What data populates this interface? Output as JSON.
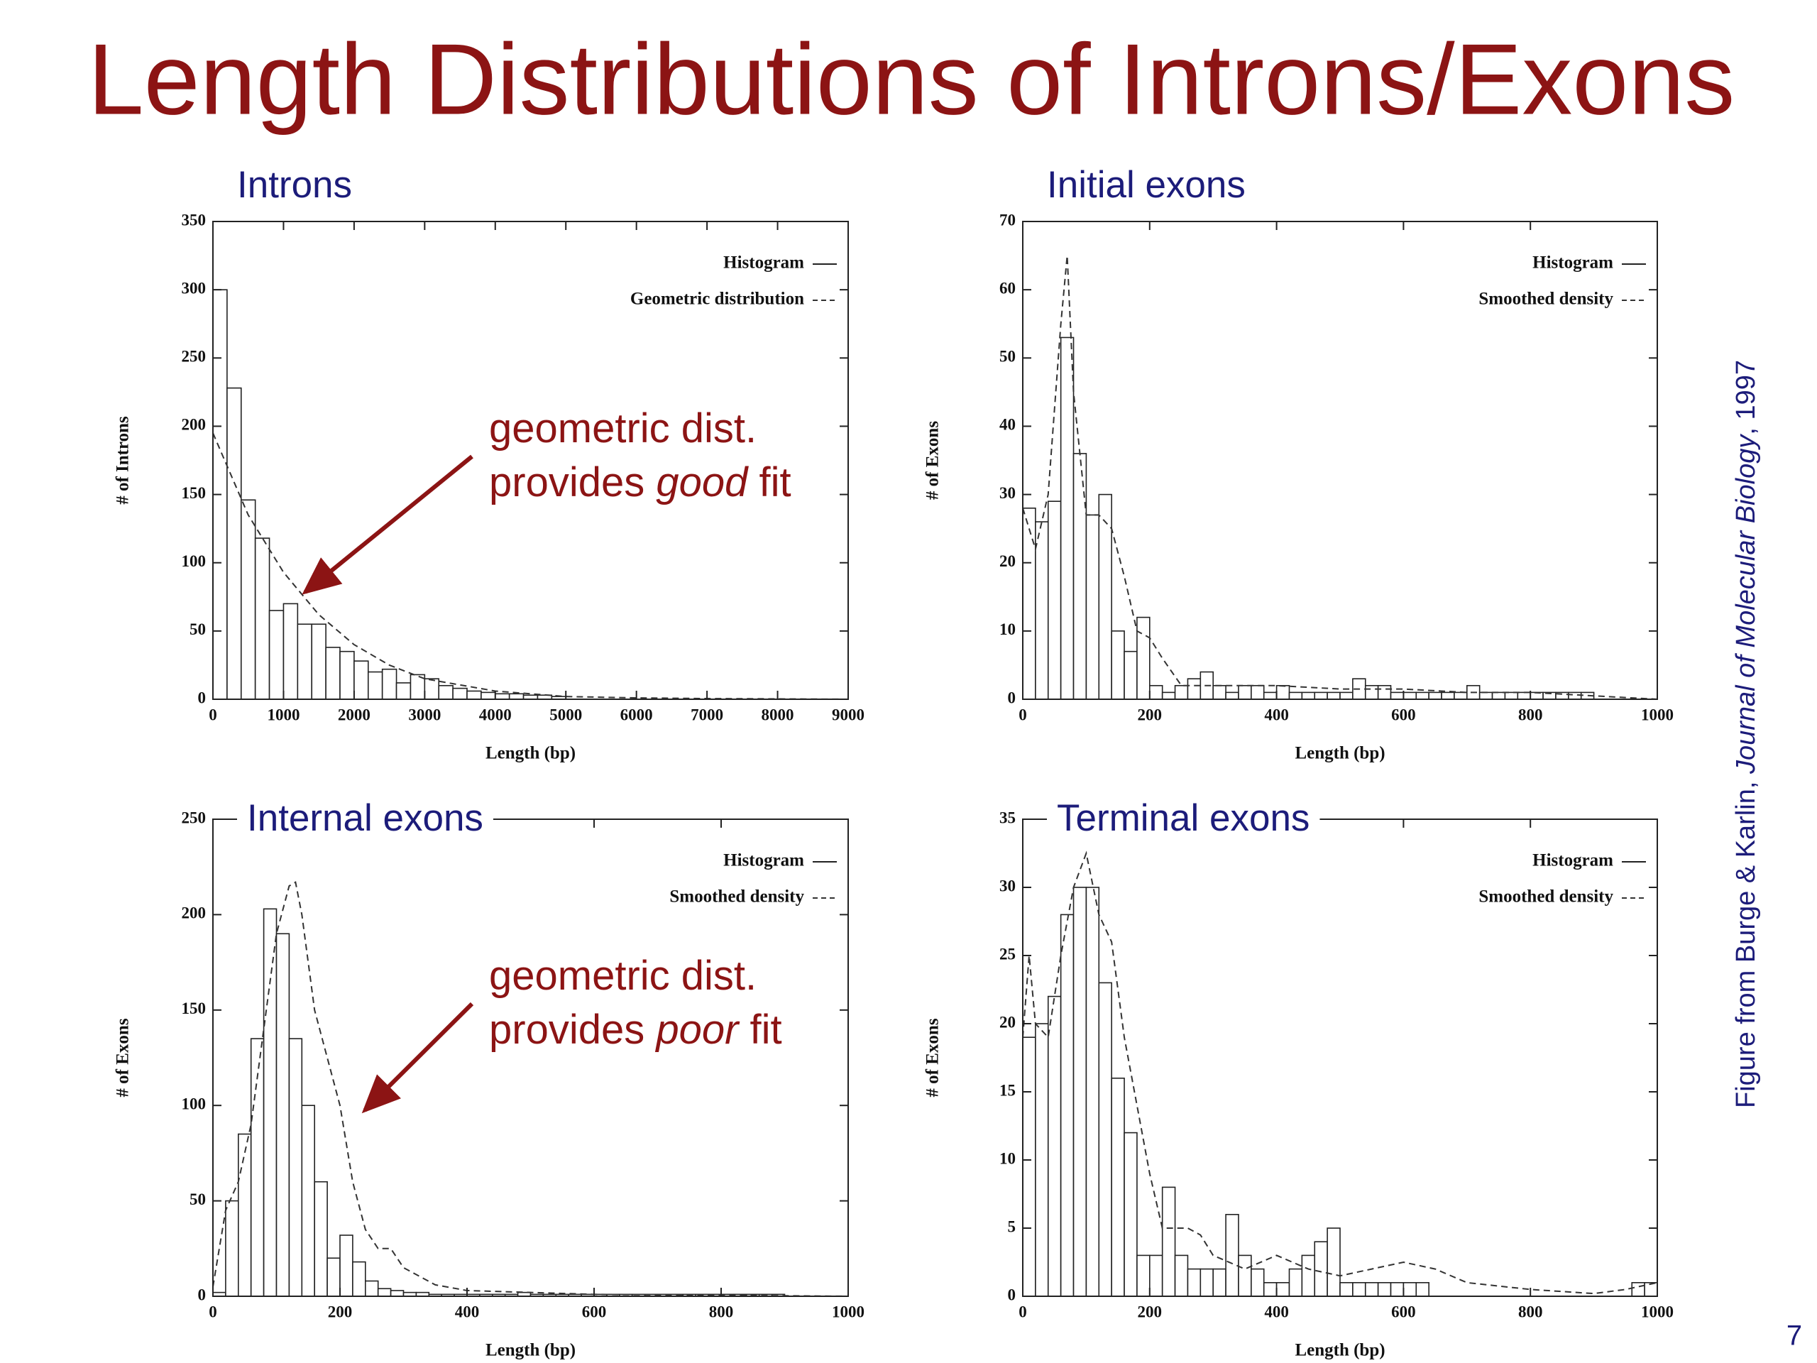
{
  "title": "Length Distributions of Introns/Exons",
  "citation": {
    "before": "Figure from Burge & Karlin, ",
    "italic": "Journal of Molecular Biology",
    "after": ", 1997"
  },
  "page_number": "7",
  "chart_data": [
    {
      "type": "histogram",
      "title": "Introns",
      "xlabel": "Length (bp)",
      "ylabel": "# of Introns",
      "legend": "upper right",
      "bins": [
        0,
        200,
        400,
        600,
        800,
        1000,
        1200,
        1400,
        1600,
        1800,
        2000,
        2200,
        2400,
        2600,
        2800,
        3000,
        3200,
        3400,
        3600,
        3800,
        4000,
        4200,
        4400,
        4600,
        4800,
        5000
      ],
      "series": [
        {
          "name": "Histogram",
          "color": "#222222",
          "style": "solid",
          "values": [
            300,
            228,
            146,
            118,
            65,
            70,
            55,
            55,
            38,
            35,
            28,
            20,
            22,
            12,
            18,
            15,
            10,
            8,
            6,
            5,
            4,
            4,
            3,
            3,
            2
          ]
        },
        {
          "name": "Geometric distribution",
          "color": "#333333",
          "style": "dashed",
          "x": [
            0,
            500,
            1000,
            1500,
            2000,
            2500,
            3000,
            4000,
            5000,
            6000,
            7000,
            9000
          ],
          "values": [
            195,
            135,
            93,
            62,
            40,
            25,
            15,
            6,
            2,
            1,
            0.5,
            0
          ]
        }
      ],
      "xlim": [
        0,
        9000
      ],
      "ylim": [
        0,
        350
      ],
      "xticks": [
        0,
        1000,
        2000,
        3000,
        4000,
        5000,
        6000,
        7000,
        8000,
        9000
      ],
      "yticks": [
        0,
        50,
        100,
        150,
        200,
        250,
        300,
        350
      ],
      "annotation": {
        "line1": "geometric dist.",
        "before": "provides ",
        "emphasis": "good",
        "after": " fit"
      }
    },
    {
      "type": "histogram",
      "title": "Initial exons",
      "xlabel": "Length (bp)",
      "ylabel": "# of Exons",
      "legend": "upper right",
      "bins": [
        0,
        20,
        40,
        60,
        80,
        100,
        120,
        140,
        160,
        180,
        200,
        220,
        240,
        260,
        280,
        300,
        320,
        340,
        360,
        380,
        400,
        420,
        440,
        460,
        480,
        500,
        520,
        540,
        560,
        580,
        600,
        620,
        640,
        660,
        680,
        700,
        720,
        740,
        760,
        780,
        800,
        820,
        840,
        860,
        880,
        900,
        920,
        940,
        960,
        980,
        1000
      ],
      "series": [
        {
          "name": "Histogram",
          "color": "#222222",
          "style": "solid",
          "values": [
            28,
            26,
            29,
            53,
            36,
            27,
            30,
            10,
            7,
            12,
            2,
            1,
            2,
            3,
            4,
            2,
            1,
            2,
            2,
            1,
            2,
            1,
            1,
            1,
            1,
            1,
            3,
            2,
            2,
            1,
            1,
            1,
            1,
            1,
            1,
            2,
            1,
            1,
            1,
            1,
            1,
            1,
            1,
            1,
            1,
            0,
            0,
            0,
            0,
            0
          ]
        },
        {
          "name": "Smoothed density",
          "color": "#333333",
          "style": "dashed",
          "x": [
            0,
            10,
            20,
            40,
            60,
            70,
            80,
            100,
            120,
            140,
            160,
            180,
            200,
            220,
            250,
            300,
            400,
            500,
            600,
            700,
            800,
            900,
            1000
          ],
          "values": [
            28,
            25,
            22,
            30,
            55,
            65,
            45,
            27,
            27,
            25,
            18,
            10,
            9,
            6,
            2,
            2,
            2,
            1.5,
            1.5,
            1,
            1,
            0.5,
            0
          ]
        }
      ],
      "xlim": [
        0,
        1000
      ],
      "ylim": [
        0,
        70
      ],
      "xticks": [
        0,
        200,
        400,
        600,
        800,
        1000
      ],
      "yticks": [
        0,
        10,
        20,
        30,
        40,
        50,
        60,
        70
      ]
    },
    {
      "type": "histogram",
      "title": "Internal exons",
      "xlabel": "Length (bp)",
      "ylabel": "# of Exons",
      "legend": "upper right",
      "bins": [
        0,
        20,
        40,
        60,
        80,
        100,
        120,
        140,
        160,
        180,
        200,
        220,
        240,
        260,
        280,
        300,
        320,
        340,
        360,
        380,
        400,
        420,
        440,
        460,
        480,
        500,
        520,
        540,
        560,
        580,
        600,
        620,
        640,
        660,
        680,
        700,
        720,
        740,
        760,
        780,
        800,
        820,
        840,
        860,
        880,
        900,
        920,
        940,
        960,
        980,
        1000
      ],
      "series": [
        {
          "name": "Histogram",
          "color": "#222222",
          "style": "solid",
          "values": [
            2,
            50,
            85,
            135,
            203,
            190,
            135,
            100,
            60,
            20,
            32,
            18,
            8,
            4,
            3,
            2,
            2,
            1,
            1,
            1,
            1,
            1,
            1,
            1,
            2,
            1,
            1,
            1,
            1,
            1,
            1,
            1,
            1,
            1,
            1,
            1,
            1,
            1,
            1,
            1,
            1,
            1,
            1,
            1,
            1,
            0,
            0,
            0,
            0,
            0
          ]
        },
        {
          "name": "Smoothed density",
          "color": "#333333",
          "style": "dashed",
          "x": [
            0,
            20,
            40,
            60,
            80,
            100,
            120,
            130,
            140,
            160,
            180,
            200,
            220,
            240,
            260,
            280,
            300,
            350,
            400,
            500,
            600,
            800,
            1000
          ],
          "values": [
            5,
            45,
            60,
            90,
            140,
            190,
            215,
            217,
            200,
            150,
            125,
            100,
            60,
            35,
            25,
            25,
            15,
            6,
            3,
            2,
            1,
            0.5,
            0
          ]
        }
      ],
      "xlim": [
        0,
        1000
      ],
      "ylim": [
        0,
        250
      ],
      "xticks": [
        0,
        200,
        400,
        600,
        800,
        1000
      ],
      "yticks": [
        0,
        50,
        100,
        150,
        200,
        250
      ],
      "annotation": {
        "line1": "geometric dist.",
        "before": "provides ",
        "emphasis": "poor",
        "after": " fit"
      }
    },
    {
      "type": "histogram",
      "title": "Terminal exons",
      "xlabel": "Length (bp)",
      "ylabel": "# of Exons",
      "legend": "upper right",
      "bins": [
        0,
        20,
        40,
        60,
        80,
        100,
        120,
        140,
        160,
        180,
        200,
        220,
        240,
        260,
        280,
        300,
        320,
        340,
        360,
        380,
        400,
        420,
        440,
        460,
        480,
        500,
        520,
        540,
        560,
        580,
        600,
        620,
        640,
        660,
        680,
        700,
        720,
        740,
        760,
        780,
        800,
        820,
        840,
        860,
        880,
        900,
        920,
        940,
        960,
        980,
        1000
      ],
      "series": [
        {
          "name": "Histogram",
          "color": "#222222",
          "style": "solid",
          "values": [
            19,
            20,
            22,
            28,
            30,
            30,
            23,
            16,
            12,
            3,
            3,
            8,
            3,
            2,
            2,
            2,
            6,
            3,
            2,
            1,
            1,
            2,
            3,
            4,
            5,
            1,
            1,
            1,
            1,
            1,
            1,
            1,
            0,
            0,
            0,
            0,
            0,
            0,
            0,
            0,
            0,
            0,
            0,
            0,
            0,
            0,
            0,
            0,
            1,
            1
          ]
        },
        {
          "name": "Smoothed density",
          "color": "#333333",
          "style": "dashed",
          "x": [
            0,
            10,
            20,
            40,
            60,
            80,
            100,
            120,
            140,
            160,
            180,
            200,
            220,
            240,
            260,
            280,
            300,
            350,
            400,
            450,
            500,
            550,
            600,
            650,
            700,
            800,
            900,
            950,
            1000
          ],
          "values": [
            19,
            25,
            20,
            19,
            25,
            30,
            32.5,
            28,
            26,
            19,
            14,
            9,
            5,
            5,
            5,
            4.5,
            3,
            2,
            3,
            2,
            1.5,
            2,
            2.5,
            2,
            1,
            0.5,
            0.2,
            0.5,
            1
          ]
        }
      ],
      "xlim": [
        0,
        1000
      ],
      "ylim": [
        0,
        35
      ],
      "xticks": [
        0,
        200,
        400,
        600,
        800,
        1000
      ],
      "yticks": [
        0,
        5,
        10,
        15,
        20,
        25,
        30,
        35
      ]
    }
  ]
}
